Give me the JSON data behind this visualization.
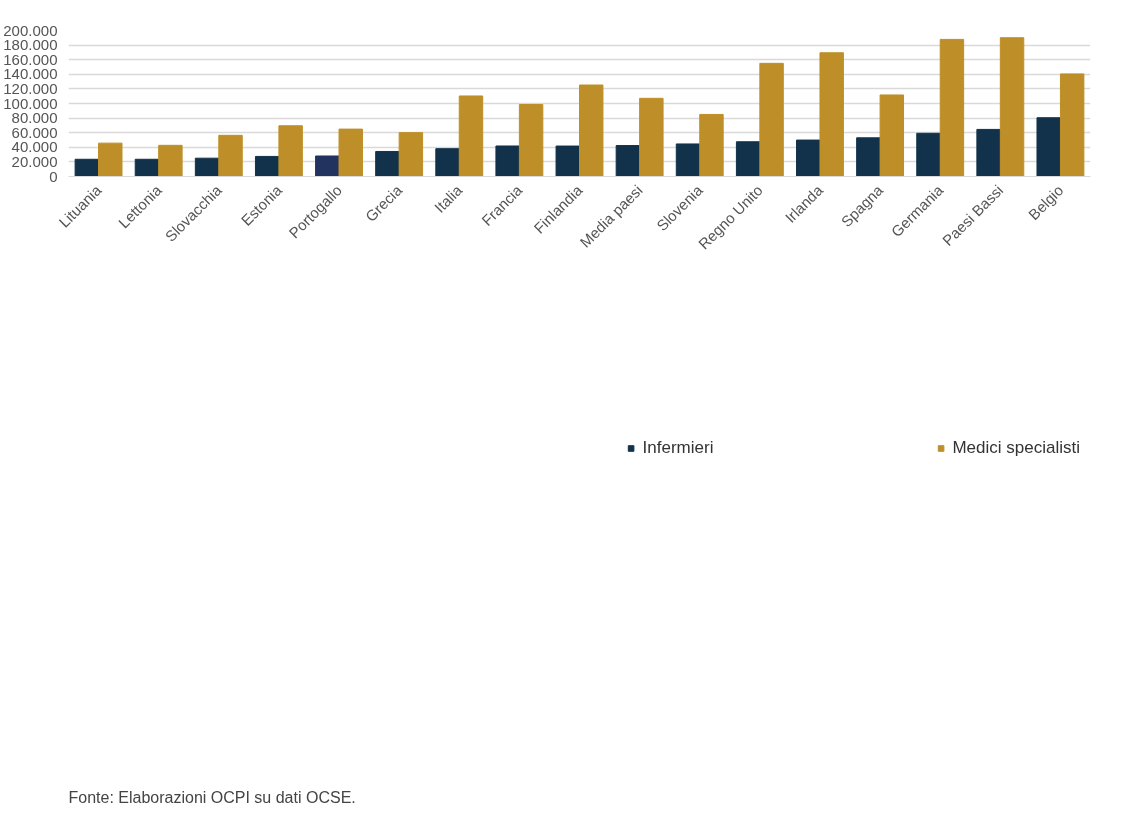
{
  "chart_data": {
    "type": "bar",
    "categories": [
      "Lituania",
      "Lettonia",
      "Slovacchia",
      "Estonia",
      "Portogallo",
      "Grecia",
      "Italia",
      "Francia",
      "Finlandia",
      "Media paesi",
      "Slovenia",
      "Regno Unito",
      "Irlanda",
      "Spagna",
      "Germania",
      "Paesi Bassi",
      "Belgio"
    ],
    "series": [
      {
        "name": "Infermieri",
        "color": "#12324b",
        "colors": [
          "#12324b",
          "#12324b",
          "#12324b",
          "#12324b",
          "#22335f",
          "#12324b",
          "#12324b",
          "#12324b",
          "#12324b",
          "#12324b",
          "#12324b",
          "#12324b",
          "#12324b",
          "#12324b",
          "#12324b",
          "#12324b",
          "#12324b"
        ],
        "values": [
          23600,
          23600,
          25100,
          27500,
          28100,
          34300,
          38100,
          41800,
          41700,
          42400,
          44600,
          47600,
          49900,
          53000,
          59200,
          64500,
          80500
        ]
      },
      {
        "name": "Medici specialisti",
        "color": "#be8f28",
        "values": [
          45700,
          42700,
          56400,
          69500,
          64900,
          60100,
          110300,
          98600,
          125300,
          107100,
          85000,
          155000,
          169500,
          111700,
          187800,
          190100,
          140500
        ]
      }
    ],
    "ylim": [
      0,
      200000
    ],
    "yticks": [
      {
        "value": 0,
        "label": "0"
      },
      {
        "value": 20000,
        "label": "20.000"
      },
      {
        "value": 40000,
        "label": "40.000"
      },
      {
        "value": 60000,
        "label": "60.000"
      },
      {
        "value": 80000,
        "label": "80.000"
      },
      {
        "value": 100000,
        "label": "100.000"
      },
      {
        "value": 120000,
        "label": "120.000"
      },
      {
        "value": 140000,
        "label": "140.000"
      },
      {
        "value": 160000,
        "label": "160.000"
      },
      {
        "value": 180000,
        "label": "180.000"
      },
      {
        "value": 200000,
        "label": "200.000"
      }
    ],
    "grid": "y",
    "legend": "bottom",
    "annotations": [
      "Fonte: Elaborazioni OCPI su dati OCSE."
    ]
  }
}
